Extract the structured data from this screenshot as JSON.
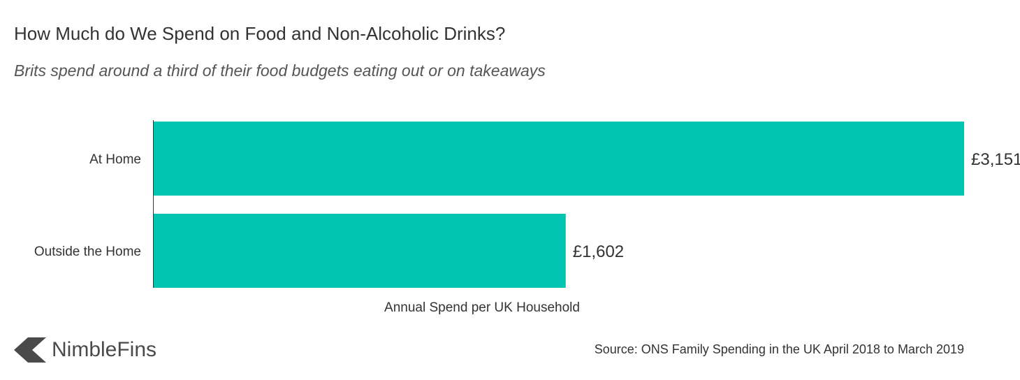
{
  "title": "How Much do We Spend on Food and Non-Alcoholic Drinks?",
  "subtitle": "Brits spend around a third of their food budgets eating out or on takeaways",
  "chart_data": {
    "type": "bar",
    "orientation": "horizontal",
    "categories": [
      "At Home",
      "Outside the Home"
    ],
    "values": [
      3151,
      1602
    ],
    "value_labels": [
      "£3,151",
      "£1,602"
    ],
    "xlabel": "Annual Spend per UK Household",
    "ylabel": "",
    "xlim": [
      0,
      3151
    ],
    "bar_color": "#00c4b0",
    "grid": false
  },
  "footer": {
    "brand": "NimbleFins",
    "source": "Source: ONS Family Spending in the UK April 2018 to March 2019"
  },
  "colors": {
    "bar": "#00c4b0",
    "text": "#333333",
    "logo": "#4a4a4a"
  }
}
